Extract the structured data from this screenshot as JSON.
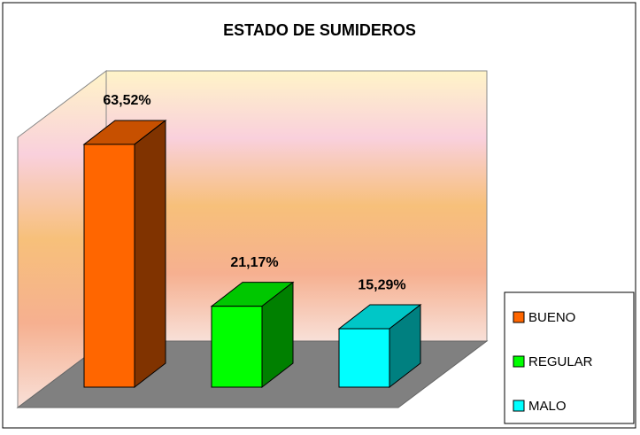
{
  "chart_data": {
    "type": "bar3d",
    "title": "ESTADO DE SUMIDEROS",
    "categories": [
      "BUENO",
      "REGULAR",
      "MALO"
    ],
    "values": [
      63.52,
      21.17,
      15.29
    ],
    "value_labels": [
      "63,52%",
      "21,17%",
      "15,29%"
    ],
    "colors": [
      "#ff6600",
      "#00ff00",
      "#00ffff"
    ],
    "ylim": [
      0,
      70
    ],
    "legend": "right"
  }
}
